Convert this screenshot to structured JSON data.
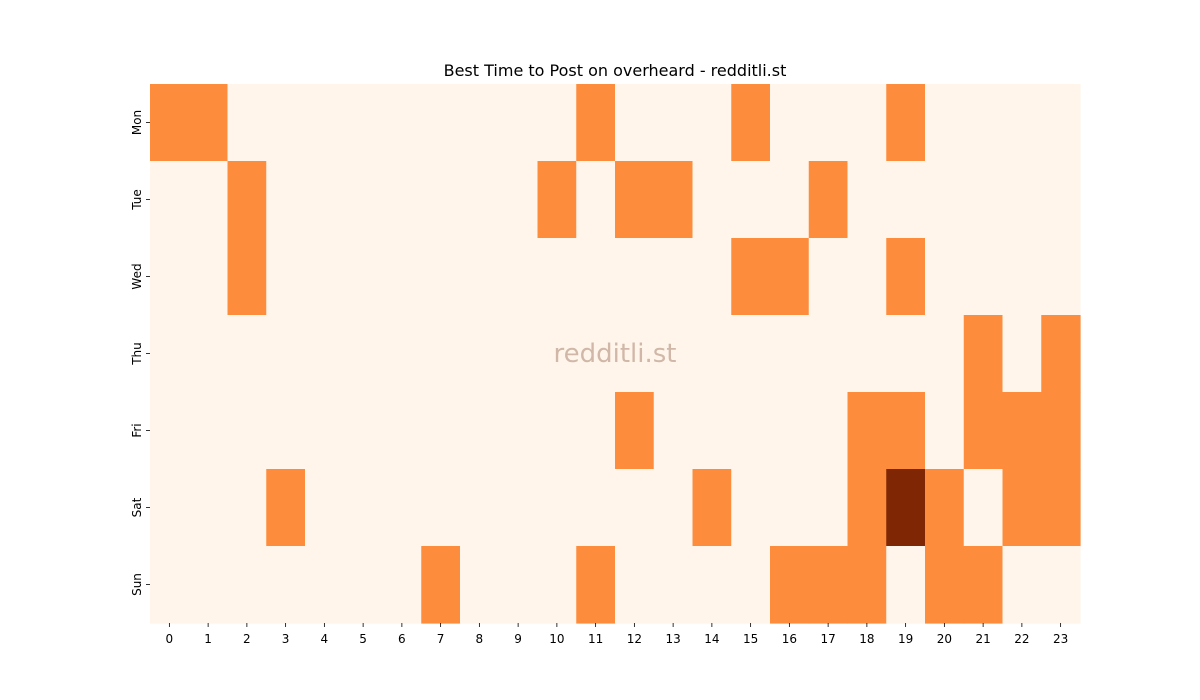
{
  "chart_data": {
    "type": "heatmap",
    "title": "Best Time to Post on overheard - redditli.st",
    "watermark": "redditli.st",
    "xlabel": "",
    "ylabel": "",
    "x_labels": [
      "0",
      "1",
      "2",
      "3",
      "4",
      "5",
      "6",
      "7",
      "8",
      "9",
      "10",
      "11",
      "12",
      "13",
      "14",
      "15",
      "16",
      "17",
      "18",
      "19",
      "20",
      "21",
      "22",
      "23"
    ],
    "y_labels": [
      "Mon",
      "Tue",
      "Wed",
      "Thu",
      "Fri",
      "Sat",
      "Sun"
    ],
    "values": [
      [
        1,
        1,
        0,
        0,
        0,
        0,
        0,
        0,
        0,
        0,
        0,
        1,
        0,
        0,
        0,
        1,
        0,
        0,
        0,
        1,
        0,
        0,
        0,
        0
      ],
      [
        0,
        0,
        1,
        0,
        0,
        0,
        0,
        0,
        0,
        0,
        1,
        0,
        1,
        1,
        0,
        0,
        0,
        1,
        0,
        0,
        0,
        0,
        0,
        0
      ],
      [
        0,
        0,
        1,
        0,
        0,
        0,
        0,
        0,
        0,
        0,
        0,
        0,
        0,
        0,
        0,
        1,
        1,
        0,
        0,
        1,
        0,
        0,
        0,
        0
      ],
      [
        0,
        0,
        0,
        0,
        0,
        0,
        0,
        0,
        0,
        0,
        0,
        0,
        0,
        0,
        0,
        0,
        0,
        0,
        0,
        0,
        0,
        1,
        0,
        1
      ],
      [
        0,
        0,
        0,
        0,
        0,
        0,
        0,
        0,
        0,
        0,
        0,
        0,
        1,
        0,
        0,
        0,
        0,
        0,
        1,
        1,
        0,
        1,
        1,
        1
      ],
      [
        0,
        0,
        0,
        1,
        0,
        0,
        0,
        0,
        0,
        0,
        0,
        0,
        0,
        0,
        1,
        0,
        0,
        0,
        1,
        2,
        1,
        0,
        1,
        1
      ],
      [
        0,
        0,
        0,
        0,
        0,
        0,
        0,
        1,
        0,
        0,
        0,
        1,
        0,
        0,
        0,
        0,
        1,
        1,
        1,
        0,
        1,
        1,
        0,
        0
      ]
    ],
    "colors": {
      "0": "#fff5eb",
      "1": "#fd8d3c",
      "2": "#7f2704"
    },
    "colorbar": false,
    "grid": false
  }
}
